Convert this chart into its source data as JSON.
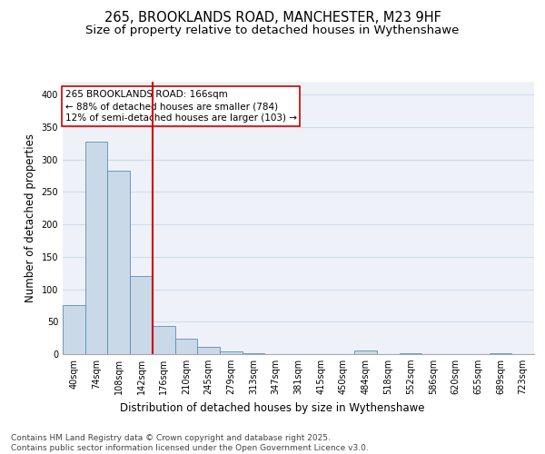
{
  "title_line1": "265, BROOKLANDS ROAD, MANCHESTER, M23 9HF",
  "title_line2": "Size of property relative to detached houses in Wythenshawe",
  "xlabel": "Distribution of detached houses by size in Wythenshawe",
  "ylabel": "Number of detached properties",
  "categories": [
    "40sqm",
    "74sqm",
    "108sqm",
    "142sqm",
    "176sqm",
    "210sqm",
    "245sqm",
    "279sqm",
    "313sqm",
    "347sqm",
    "381sqm",
    "415sqm",
    "450sqm",
    "484sqm",
    "518sqm",
    "552sqm",
    "586sqm",
    "620sqm",
    "655sqm",
    "689sqm",
    "723sqm"
  ],
  "values": [
    75,
    328,
    283,
    120,
    44,
    24,
    11,
    4,
    1,
    0,
    0,
    0,
    0,
    5,
    0,
    2,
    0,
    0,
    0,
    2,
    0
  ],
  "bar_color": "#c9d9e8",
  "bar_edge_color": "#5b8db8",
  "vline_x": 3.5,
  "vline_color": "#cc0000",
  "annotation_text": "265 BROOKLANDS ROAD: 166sqm\n← 88% of detached houses are smaller (784)\n12% of semi-detached houses are larger (103) →",
  "annotation_box_color": "#ffffff",
  "annotation_box_edge": "#cc0000",
  "ylim": [
    0,
    420
  ],
  "yticks": [
    0,
    50,
    100,
    150,
    200,
    250,
    300,
    350,
    400
  ],
  "grid_color": "#d0dcea",
  "background_color": "#eef2f8",
  "footer_text": "Contains HM Land Registry data © Crown copyright and database right 2025.\nContains public sector information licensed under the Open Government Licence v3.0.",
  "title_fontsize": 10.5,
  "subtitle_fontsize": 9.5,
  "axis_label_fontsize": 8.5,
  "tick_fontsize": 7,
  "footer_fontsize": 6.5,
  "annotation_fontsize": 7.5
}
